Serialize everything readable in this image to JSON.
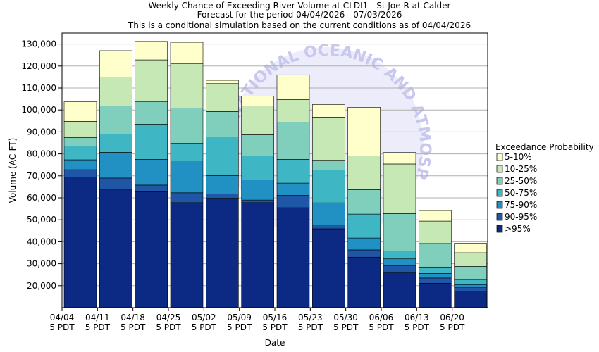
{
  "chart_data": {
    "type": "bar",
    "stacked": true,
    "title_lines": [
      "Weekly Chance of Exceeding River Volume at CLDI1 - St Joe R at Calder",
      "Forecast for the period 04/04/2026 - 07/03/2026",
      "This is a conditional simulation based on the current conditions as of 04/04/2026"
    ],
    "xlabel": "Date",
    "ylabel": "Volume (AC-FT)",
    "ylim": [
      10000,
      135000
    ],
    "y_ticks": [
      "20,000",
      "30,000",
      "40,000",
      "50,000",
      "60,000",
      "70,000",
      "80,000",
      "90,000",
      "100,000",
      "110,000",
      "120,000",
      "130,000"
    ],
    "x_tick_labels": [
      [
        "04/04",
        "5 PDT"
      ],
      [
        "04/11",
        "5 PDT"
      ],
      [
        "04/18",
        "5 PDT"
      ],
      [
        "04/25",
        "5 PDT"
      ],
      [
        "05/02",
        "5 PDT"
      ],
      [
        "05/09",
        "5 PDT"
      ],
      [
        "05/16",
        "5 PDT"
      ],
      [
        "05/23",
        "5 PDT"
      ],
      [
        "05/30",
        "5 PDT"
      ],
      [
        "06/06",
        "5 PDT"
      ],
      [
        "06/13",
        "5 PDT"
      ],
      [
        "06/20",
        "5 PDT"
      ]
    ],
    "grid": true,
    "legend": {
      "title": "Exceedance Probability",
      "placement": "right",
      "entries": [
        "5-10%",
        "10-25%",
        "25-50%",
        "50-75%",
        "75-90%",
        "90-95%",
        ">95%"
      ]
    },
    "series_colors": [
      "#0c2a84",
      "#1f57a6",
      "#2191c4",
      "#3fb6c4",
      "#7fcfbc",
      "#c6e8b4",
      "#ffffcc"
    ],
    "weeks": [
      {
        "week": "04/04",
        "bounds": [
          69500,
          72800,
          77300,
          83600,
          87400,
          94800,
          103700
        ]
      },
      {
        "week": "04/11",
        "bounds": [
          63900,
          69000,
          80700,
          89000,
          101800,
          115000,
          127000
        ]
      },
      {
        "week": "04/18",
        "bounds": [
          62800,
          65800,
          77500,
          93500,
          103700,
          122800,
          131200
        ]
      },
      {
        "week": "04/25",
        "bounds": [
          57800,
          62300,
          76800,
          84800,
          100900,
          121000,
          130800
        ]
      },
      {
        "week": "05/02",
        "bounds": [
          59800,
          61700,
          70100,
          87700,
          99300,
          112000,
          113500
        ]
      },
      {
        "week": "05/09",
        "bounds": [
          57800,
          59000,
          68200,
          79100,
          88700,
          101800,
          106300
        ]
      },
      {
        "week": "05/16",
        "bounds": [
          55500,
          61100,
          66700,
          77500,
          94500,
          104700,
          116000
        ]
      },
      {
        "week": "05/23",
        "bounds": [
          45900,
          47700,
          57700,
          72600,
          77100,
          96700,
          102500
        ]
      },
      {
        "week": "05/30",
        "bounds": [
          33000,
          36300,
          41700,
          52600,
          63700,
          79100,
          101200
        ]
      },
      {
        "week": "06/06",
        "bounds": [
          25800,
          29200,
          32200,
          35800,
          52800,
          75400,
          80600
        ]
      },
      {
        "week": "06/13",
        "bounds": [
          21100,
          23500,
          25600,
          28500,
          39200,
          49400,
          54200
        ]
      },
      {
        "week": "06/20",
        "bounds": [
          17500,
          19300,
          20500,
          22800,
          28800,
          35000,
          39300
        ]
      }
    ]
  }
}
